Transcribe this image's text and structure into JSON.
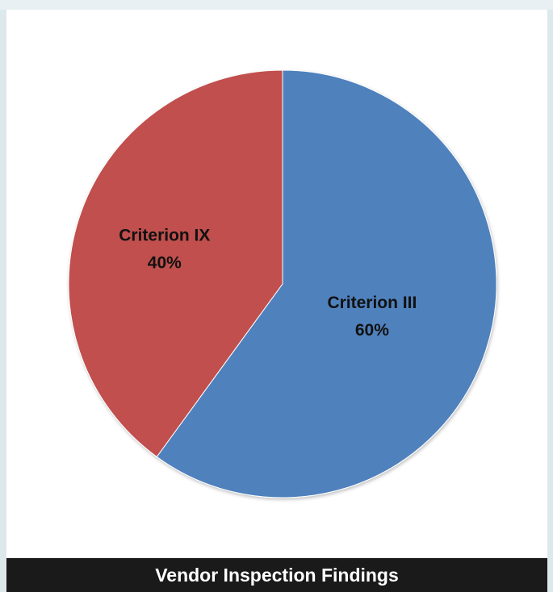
{
  "chart_data": {
    "type": "pie",
    "slices": [
      {
        "label": "Criterion III",
        "value": 60,
        "value_label": "60%",
        "color": "#4f81bd"
      },
      {
        "label": "Criterion IX",
        "value": 40,
        "value_label": "40%",
        "color": "#c0504d"
      }
    ],
    "start_angle_deg": 0,
    "direction": "clockwise"
  },
  "caption": {
    "text": "Vendor Inspection Findings"
  }
}
